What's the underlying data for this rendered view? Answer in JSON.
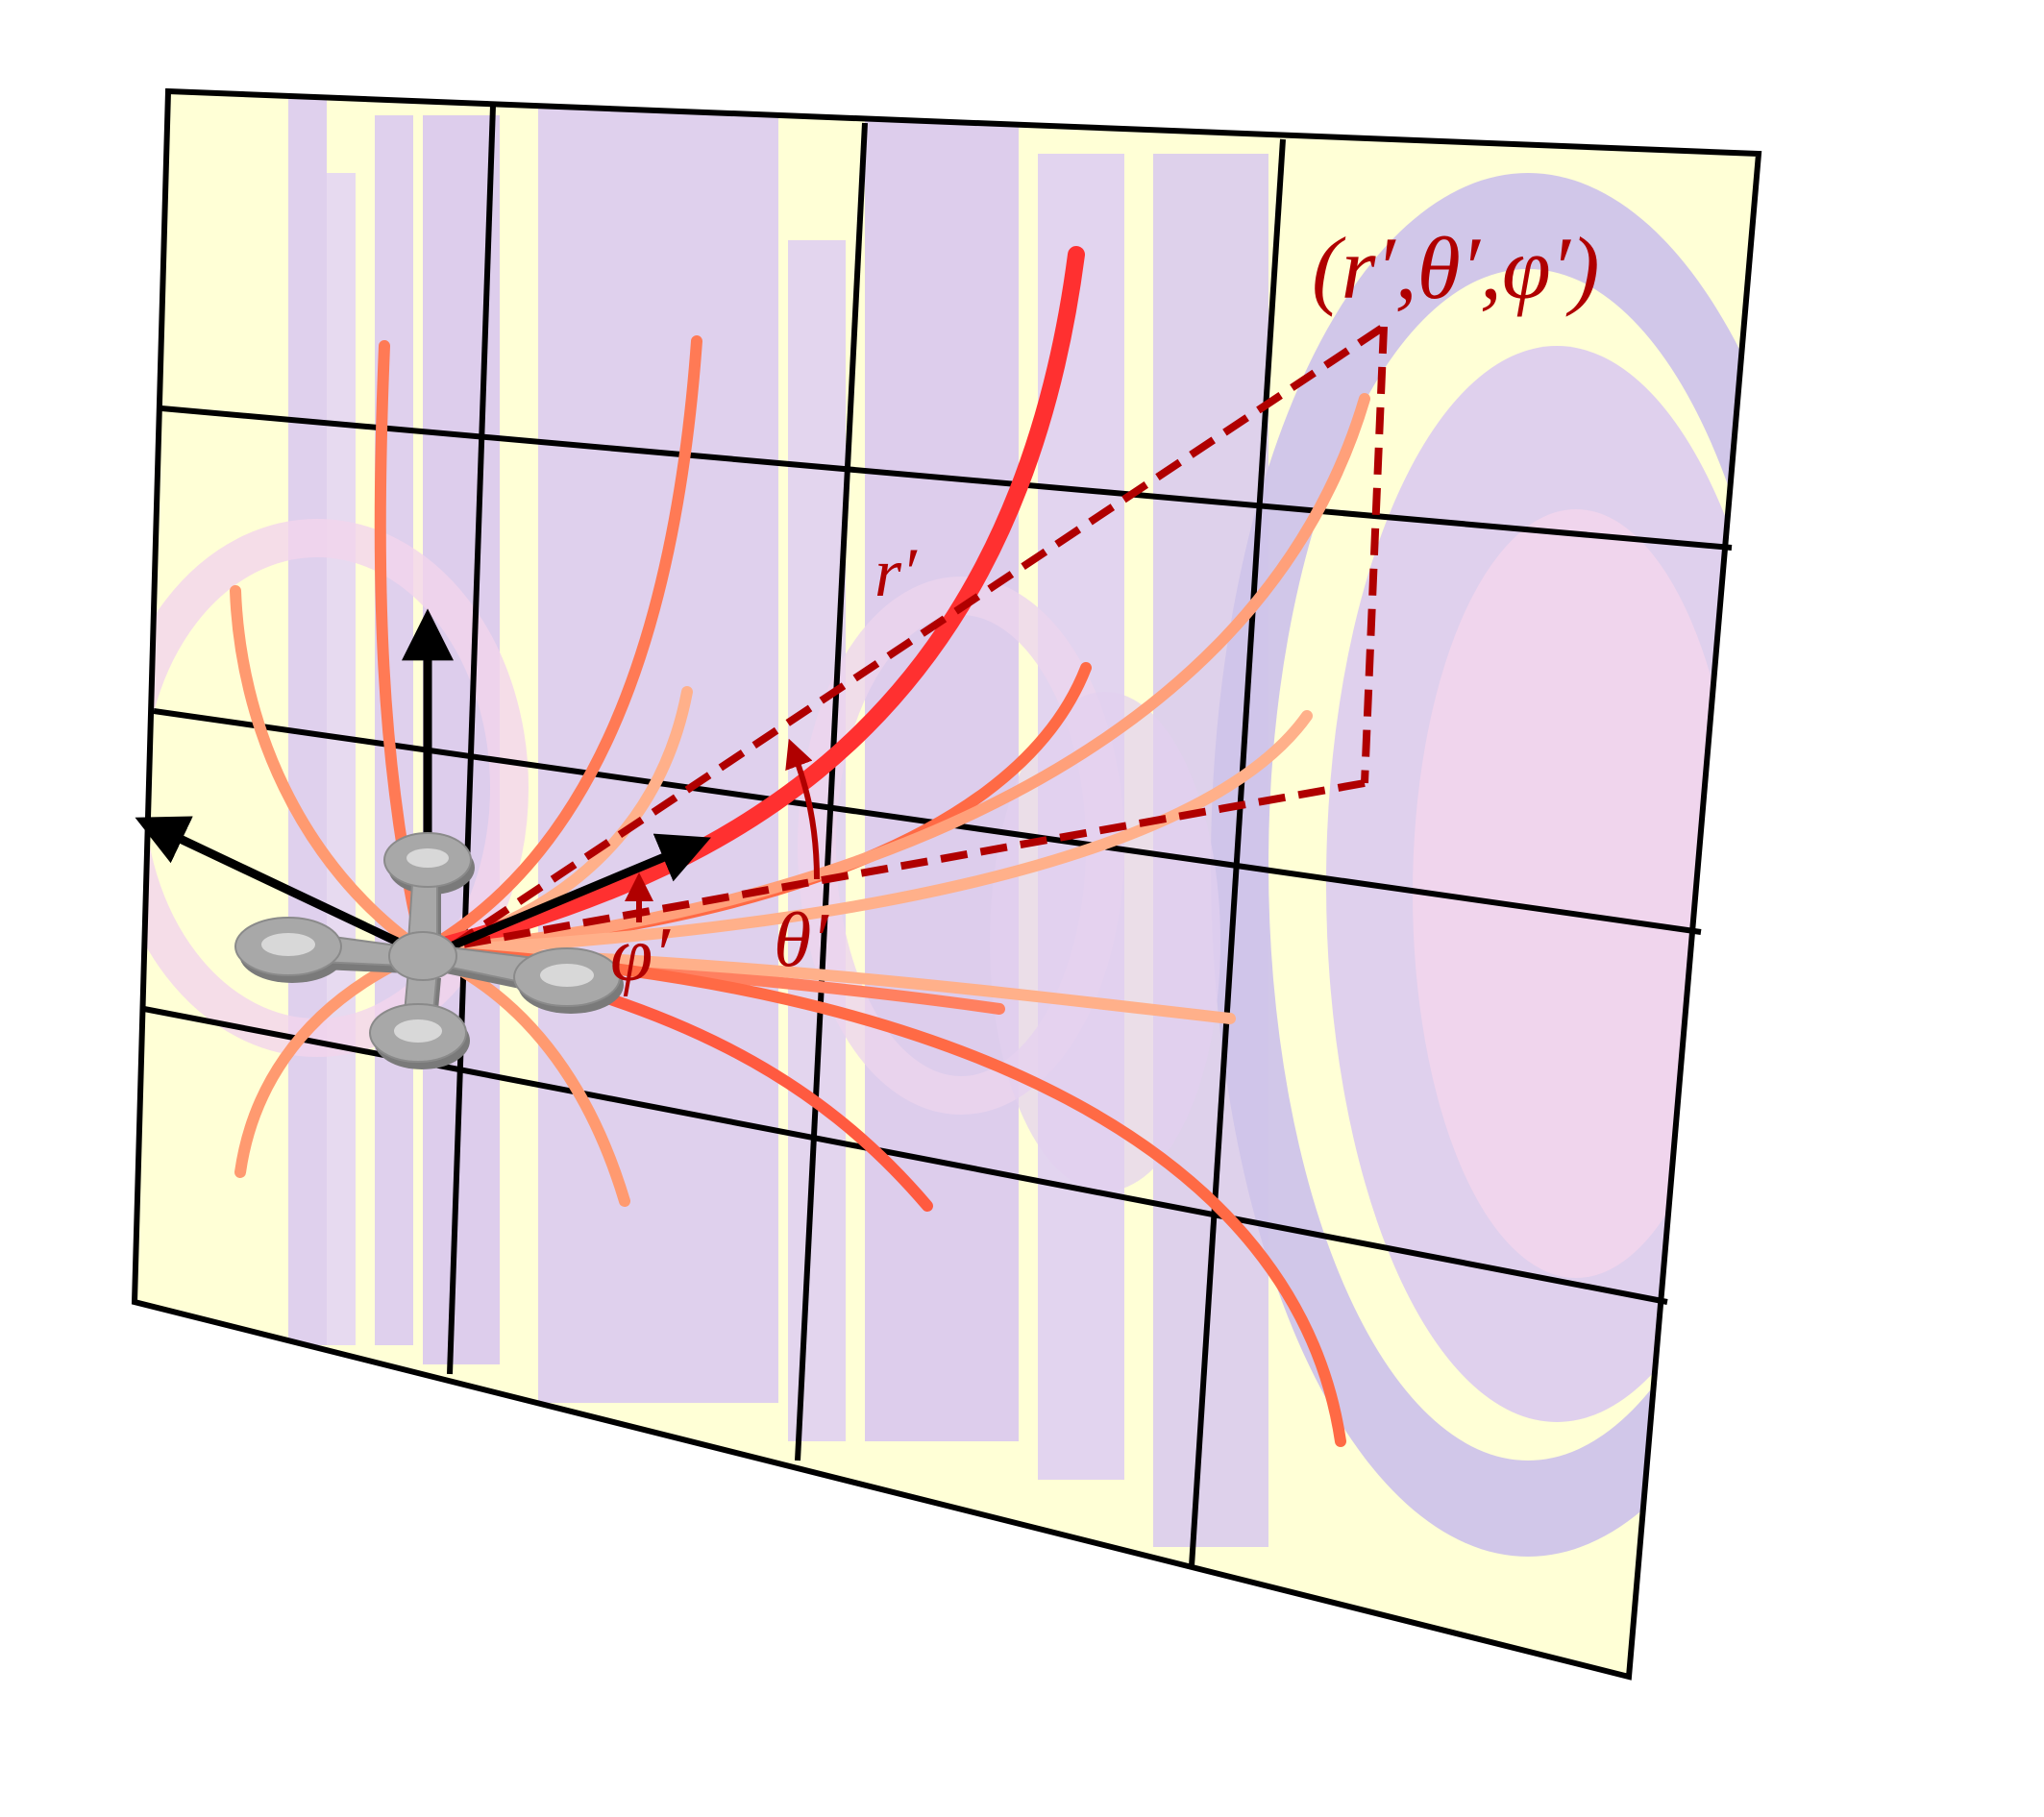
{
  "labels": {
    "target_point": "(r′,θ′,φ′)",
    "radius": "r′",
    "polar_angle": "θ′",
    "azimuth_angle": "φ′"
  },
  "colors": {
    "background": "#ffffff",
    "map_yellow": "#ffffd6",
    "map_purple": "#dccbf0",
    "map_violet": "#cfc4ea",
    "map_pink": "#f2d5ec",
    "grid_line": "#000000",
    "axis_arrow": "#000000",
    "dashed_geometry": "#b00000",
    "label_text": "#b00000",
    "trajectory_light": "#ffb08a",
    "trajectory_mid": "#ff7a55",
    "trajectory_strong": "#ff3030",
    "drone_body": "#a8a8a8",
    "drone_edge": "#7a7a7a"
  },
  "icons": {
    "drone": "quadrotor-drone-icon",
    "axes": "coordinate-axes-arrows"
  }
}
